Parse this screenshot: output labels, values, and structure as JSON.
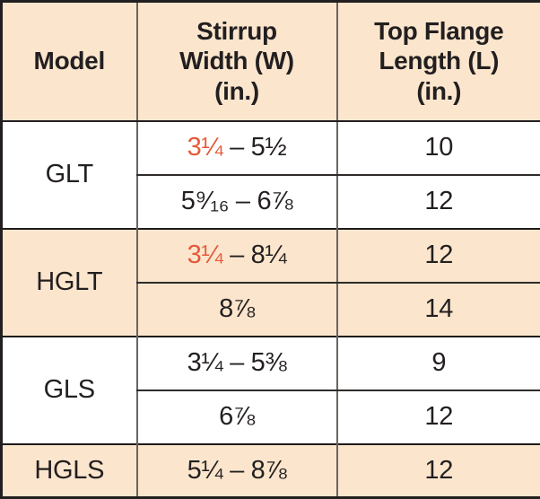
{
  "colors": {
    "accent_red": "#e5593b",
    "row_shade": "#fbe6cd",
    "text": "#231f20"
  },
  "table": {
    "columns": [
      {
        "label": "Model"
      },
      {
        "label": "Stirrup\nWidth (W)\n(in.)"
      },
      {
        "label": "Top Flange\nLength (L)\n(in.)"
      }
    ],
    "groups": [
      {
        "model": "GLT",
        "shaded": false,
        "rows": [
          {
            "width_highlight": "3¼",
            "width_rest": " – 5½",
            "length": "10"
          },
          {
            "width_highlight": "",
            "width_rest": "5⁹⁄₁₆ – 6⅞",
            "length": "12"
          }
        ]
      },
      {
        "model": "HGLT",
        "shaded": true,
        "rows": [
          {
            "width_highlight": "3¼",
            "width_rest": " – 8¼",
            "length": "12"
          },
          {
            "width_highlight": "",
            "width_rest": "8⅞",
            "length": "14"
          }
        ]
      },
      {
        "model": "GLS",
        "shaded": false,
        "rows": [
          {
            "width_highlight": "",
            "width_rest": "3¼ – 5⅜",
            "length": "9"
          },
          {
            "width_highlight": "",
            "width_rest": "6⅞",
            "length": "12"
          }
        ]
      },
      {
        "model": "HGLS",
        "shaded": true,
        "rows": [
          {
            "width_highlight": "",
            "width_rest": "5¼ – 8⅞",
            "length": "12"
          }
        ]
      }
    ]
  }
}
